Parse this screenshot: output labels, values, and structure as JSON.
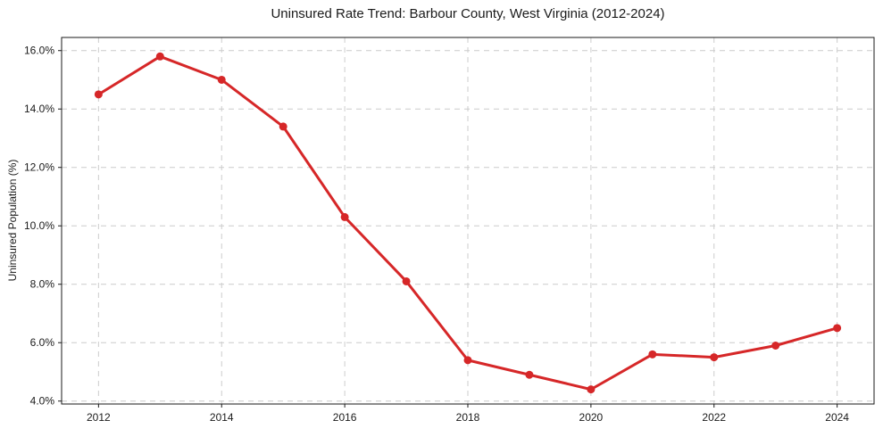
{
  "chart_data": {
    "type": "line",
    "title": "Uninsured Rate Trend: Barbour County, West Virginia (2012-2024)",
    "xlabel": "",
    "ylabel": "Uninsured Population (%)",
    "x": [
      2012,
      2013,
      2014,
      2015,
      2016,
      2017,
      2018,
      2019,
      2020,
      2021,
      2022,
      2023,
      2024
    ],
    "series": [
      {
        "name": "Uninsured rate",
        "values": [
          14.5,
          15.8,
          15.0,
          13.4,
          10.3,
          8.1,
          5.4,
          4.9,
          4.4,
          5.6,
          5.5,
          5.9,
          6.5
        ]
      }
    ],
    "x_ticks": [
      2012,
      2014,
      2016,
      2018,
      2020,
      2022,
      2024
    ],
    "x_tick_labels": [
      "2012",
      "2014",
      "2016",
      "2018",
      "2020",
      "2022",
      "2024"
    ],
    "y_ticks": [
      4,
      6,
      8,
      10,
      12,
      14,
      16
    ],
    "y_tick_labels": [
      "4.0%",
      "6.0%",
      "8.0%",
      "10.0%",
      "12.0%",
      "14.0%",
      "16.0%"
    ],
    "xlim": [
      2011.4,
      2024.6
    ],
    "ylim": [
      3.9,
      16.45
    ],
    "grid": true,
    "grid_style": "dashed",
    "legend_position": "none",
    "line_color": "#d62728",
    "marker": "circle",
    "grid_color": "#cccccc",
    "spine_color": "#1a1a1a",
    "text_color": "#1a1a1a",
    "background_color": "#ffffff"
  }
}
